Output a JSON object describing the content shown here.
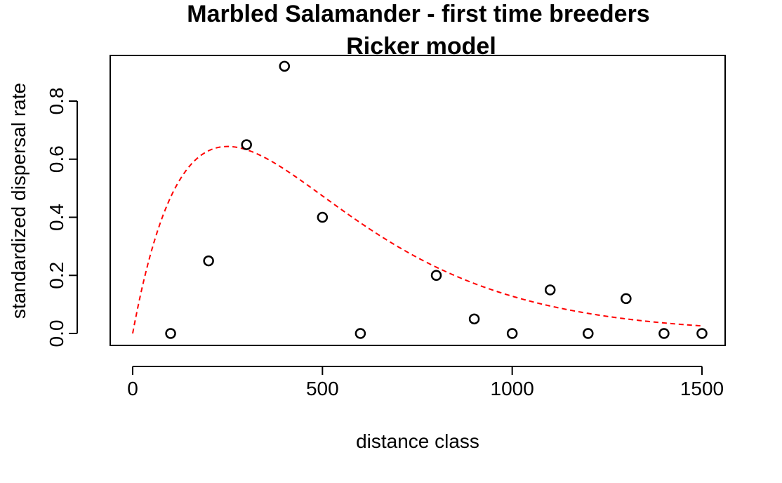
{
  "chart_data": {
    "type": "scatter",
    "title": "Marbled Salamander - first time breeders",
    "subtitle": "Ricker model",
    "xlabel": "distance class",
    "ylabel": "standardized dispersal rate",
    "xlim": [
      0,
      1500
    ],
    "ylim": [
      0,
      0.92
    ],
    "x_ticks": [
      0,
      500,
      1000,
      1500
    ],
    "y_ticks": [
      0.0,
      0.2,
      0.4,
      0.6,
      0.8
    ],
    "x_tick_labels": [
      "0",
      "500",
      "1000",
      "1500"
    ],
    "y_tick_labels": [
      "0.0",
      "0.2",
      "0.4",
      "0.6",
      "0.8"
    ],
    "points": {
      "x": [
        100,
        200,
        300,
        400,
        500,
        600,
        800,
        900,
        1000,
        1100,
        1200,
        1300,
        1400,
        1500
      ],
      "y": [
        0.0,
        0.25,
        0.65,
        0.92,
        0.4,
        0.0,
        0.2,
        0.05,
        0.0,
        0.15,
        0.0,
        0.12,
        0.0,
        0.0
      ]
    },
    "fit_curve": {
      "model": "Ricker",
      "a": 0.007,
      "b": 0.004,
      "color": "#ff0000",
      "style": "dashed",
      "x_range": [
        0,
        1500
      ]
    },
    "grid": false,
    "colors": {
      "points": "#000000",
      "curve": "#ff0000",
      "axes": "#000000"
    }
  }
}
